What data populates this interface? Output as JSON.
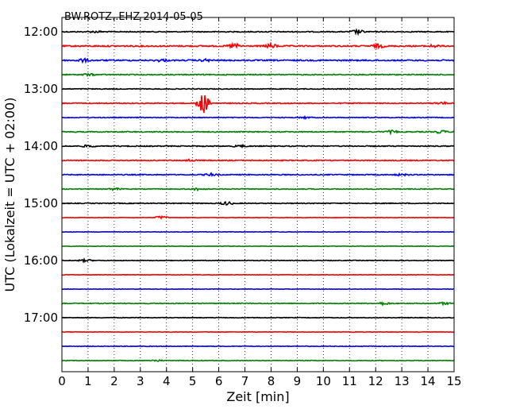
{
  "chart_data": {
    "type": "line",
    "title": "BW.ROTZ..EHZ 2014-05-05",
    "xlabel": "Zeit  [min]",
    "ylabel": "UTC (Lokalzeit = UTC + 02:00)",
    "xlim": [
      0,
      15
    ],
    "x_ticks": [
      "0",
      "1",
      "2",
      "3",
      "4",
      "5",
      "6",
      "7",
      "8",
      "9",
      "10",
      "11",
      "12",
      "13",
      "14",
      "15"
    ],
    "y_ticks": [
      "12:00",
      "13:00",
      "14:00",
      "15:00",
      "16:00",
      "17:00"
    ],
    "grid": "vertical dotted",
    "trace_colors": [
      "#000000",
      "#ff0000",
      "#0000ff",
      "#008000"
    ],
    "traces": [
      {
        "start": "12:00",
        "amplitude": 0.6,
        "events": [
          {
            "minute": 1.3,
            "amp": 1.0
          },
          {
            "minute": 11.3,
            "amp": 2.6
          }
        ]
      },
      {
        "start": "12:15",
        "amplitude": 0.8,
        "events": [
          {
            "minute": 6.6,
            "amp": 3.2
          },
          {
            "minute": 8.0,
            "amp": 2.6
          },
          {
            "minute": 12.1,
            "amp": 2.2
          },
          {
            "minute": 14.2,
            "amp": 1.4
          }
        ]
      },
      {
        "start": "12:30",
        "amplitude": 0.8,
        "events": [
          {
            "minute": 0.8,
            "amp": 2.0
          },
          {
            "minute": 3.8,
            "amp": 1.4
          },
          {
            "minute": 5.5,
            "amp": 1.2
          }
        ]
      },
      {
        "start": "12:45",
        "amplitude": 0.6,
        "events": [
          {
            "minute": 1.0,
            "amp": 1.2
          }
        ]
      },
      {
        "start": "13:00",
        "amplitude": 0.5,
        "events": []
      },
      {
        "start": "13:15",
        "amplitude": 0.6,
        "events": [
          {
            "minute": 5.4,
            "amp": 13.0
          },
          {
            "minute": 14.5,
            "amp": 1.4
          }
        ]
      },
      {
        "start": "13:30",
        "amplitude": 0.5,
        "events": [
          {
            "minute": 9.3,
            "amp": 1.0
          }
        ]
      },
      {
        "start": "13:45",
        "amplitude": 0.6,
        "events": [
          {
            "minute": 12.6,
            "amp": 1.6
          },
          {
            "minute": 14.5,
            "amp": 1.8
          }
        ]
      },
      {
        "start": "14:00",
        "amplitude": 0.6,
        "events": [
          {
            "minute": 1.0,
            "amp": 1.2
          },
          {
            "minute": 6.8,
            "amp": 1.2
          }
        ]
      },
      {
        "start": "14:15",
        "amplitude": 0.6,
        "events": [
          {
            "minute": 4.9,
            "amp": 1.2
          }
        ]
      },
      {
        "start": "14:30",
        "amplitude": 0.6,
        "events": [
          {
            "minute": 5.7,
            "amp": 1.4
          },
          {
            "minute": 13.0,
            "amp": 1.0
          }
        ]
      },
      {
        "start": "14:45",
        "amplitude": 0.5,
        "events": [
          {
            "minute": 2.0,
            "amp": 1.2
          },
          {
            "minute": 5.2,
            "amp": 1.4
          }
        ]
      },
      {
        "start": "15:00",
        "amplitude": 0.5,
        "events": [
          {
            "minute": 6.3,
            "amp": 2.0
          }
        ]
      },
      {
        "start": "15:15",
        "amplitude": 0.3,
        "events": [
          {
            "minute": 3.8,
            "amp": 2.0
          }
        ]
      },
      {
        "start": "15:30",
        "amplitude": 0.3,
        "events": []
      },
      {
        "start": "15:45",
        "amplitude": 0.3,
        "events": []
      },
      {
        "start": "16:00",
        "amplitude": 0.4,
        "events": [
          {
            "minute": 0.9,
            "amp": 1.4
          }
        ]
      },
      {
        "start": "16:15",
        "amplitude": 0.3,
        "events": []
      },
      {
        "start": "16:30",
        "amplitude": 0.3,
        "events": []
      },
      {
        "start": "16:45",
        "amplitude": 0.5,
        "events": [
          {
            "minute": 12.3,
            "amp": 1.6
          },
          {
            "minute": 14.6,
            "amp": 1.2
          }
        ]
      },
      {
        "start": "17:00",
        "amplitude": 0.4,
        "events": []
      },
      {
        "start": "17:15",
        "amplitude": 0.3,
        "events": []
      },
      {
        "start": "17:30",
        "amplitude": 0.4,
        "events": []
      },
      {
        "start": "17:45",
        "amplitude": 0.4,
        "events": [
          {
            "minute": 3.6,
            "amp": 1.0
          }
        ]
      }
    ]
  }
}
